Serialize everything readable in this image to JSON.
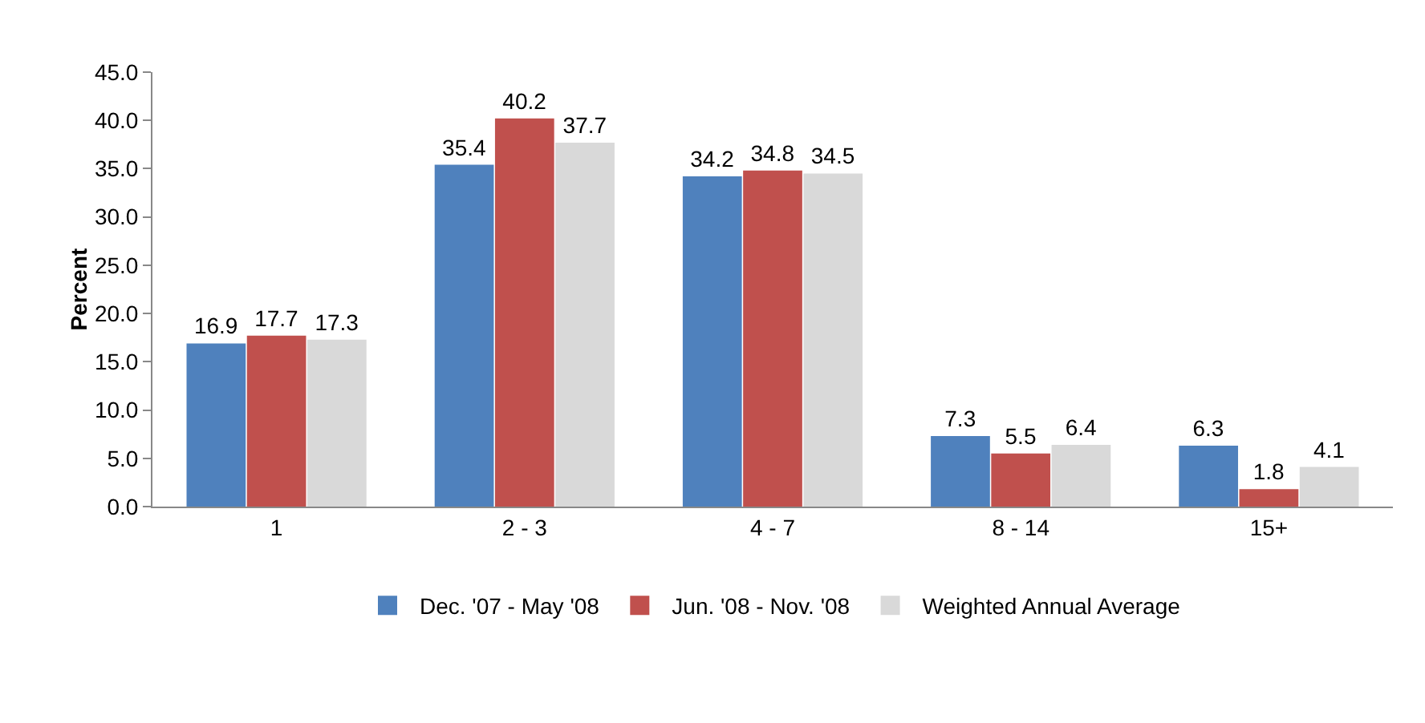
{
  "chart_data": {
    "type": "bar",
    "ylabel": "Percent",
    "categories": [
      "1",
      "2 - 3",
      "4 - 7",
      "8 - 14",
      "15+"
    ],
    "series": [
      {
        "name": "Dec. '07 - May '08",
        "color": "#4f81bd",
        "values": [
          16.9,
          35.4,
          34.2,
          7.3,
          6.3
        ]
      },
      {
        "name": "Jun. '08 - Nov. '08",
        "color": "#c0504d",
        "values": [
          17.7,
          40.2,
          34.8,
          5.5,
          1.8
        ]
      },
      {
        "name": "Weighted Annual Average",
        "color": "#d9d9d9",
        "values": [
          17.3,
          37.7,
          34.5,
          6.4,
          4.1
        ]
      }
    ],
    "ylim": [
      0,
      45
    ],
    "yticks": [
      {
        "value": 0,
        "label": "0.0"
      },
      {
        "value": 5,
        "label": "5.0"
      },
      {
        "value": 10,
        "label": "10.0"
      },
      {
        "value": 15,
        "label": "15.0"
      },
      {
        "value": 20,
        "label": "20.0"
      },
      {
        "value": 25,
        "label": "25.0"
      },
      {
        "value": 30,
        "label": "30.0"
      },
      {
        "value": 35,
        "label": "35.0"
      },
      {
        "value": 40,
        "label": "40.0"
      },
      {
        "value": 45,
        "label": "45.0"
      }
    ],
    "data_labels": true,
    "grid": false,
    "legend": "bottom"
  }
}
